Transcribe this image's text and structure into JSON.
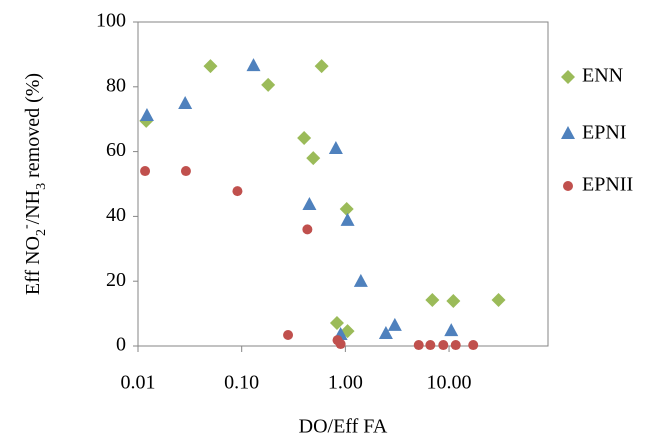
{
  "chart_data": {
    "type": "scatter",
    "xlabel": "DO/Eff FA",
    "ylabel": [
      "Eff NO",
      "2",
      "-",
      "/NH",
      "3",
      " removed (%)"
    ],
    "xscale": "log",
    "xlim": [
      0.01,
      90
    ],
    "ylim": [
      0,
      100
    ],
    "xticks": [
      {
        "value": 0.01,
        "label": "0.01"
      },
      {
        "value": 0.1,
        "label": "0.10"
      },
      {
        "value": 1,
        "label": "1.00"
      },
      {
        "value": 10,
        "label": "10.00"
      }
    ],
    "yticks": [
      0,
      20,
      40,
      60,
      80,
      100
    ],
    "legend": "right",
    "series": [
      {
        "name": "ENN",
        "color": "#9bbb59",
        "marker": "diamond",
        "x": [
          0.012,
          0.05,
          0.18,
          0.59,
          0.4,
          0.49,
          1.03,
          0.83,
          1.05,
          6.9,
          11,
          30
        ],
        "values": [
          69.5,
          86.4,
          80.6,
          86.4,
          64.2,
          58,
          42.3,
          7.1,
          4.6,
          14.2,
          13.9,
          14.2
        ]
      },
      {
        "name": "EPNI",
        "color": "#4f81bd",
        "marker": "triangle",
        "x": [
          0.0122,
          0.0285,
          0.13,
          0.45,
          0.81,
          1.05,
          1.41,
          0.9,
          2.46,
          3,
          10.5
        ],
        "values": [
          71,
          74.7,
          86.4,
          43.5,
          60.8,
          38.6,
          19.8,
          3.4,
          3.7,
          6.2,
          4.6
        ]
      },
      {
        "name": "EPNII",
        "color": "#c0504d",
        "marker": "circle",
        "x": [
          0.0117,
          0.029,
          0.091,
          0.43,
          0.28,
          0.84,
          0.9,
          5.1,
          6.6,
          8.8,
          11.6,
          17.1
        ],
        "values": [
          54,
          54,
          47.8,
          36,
          3.4,
          1.8,
          0.6,
          0.3,
          0.3,
          0.3,
          0.3,
          0.3
        ]
      }
    ]
  }
}
